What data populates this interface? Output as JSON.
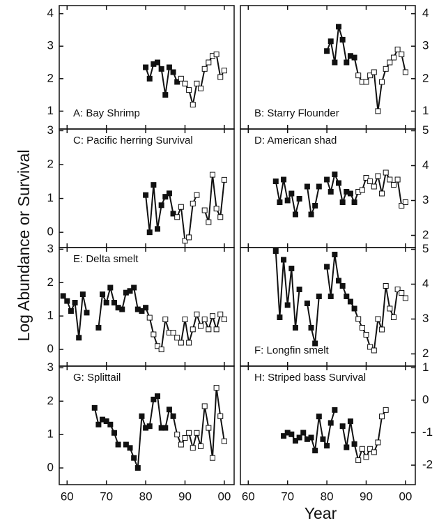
{
  "xlabel": "Year",
  "ylabel": "Log Abundance or Survival",
  "chart_data": [
    {
      "type": "line",
      "title": "A: Bay Shrimp",
      "title_position": "bottom",
      "yaxis_side": "left",
      "open_marker_from": 1989,
      "x": [
        1980,
        1981,
        1982,
        1983,
        1984,
        1985,
        1986,
        1987,
        1988,
        1989,
        1990,
        1991,
        1992,
        1993,
        1994,
        1995,
        1996,
        1997,
        1998,
        1999,
        2000
      ],
      "values": [
        2.35,
        2.0,
        2.45,
        2.5,
        2.3,
        1.5,
        2.35,
        2.2,
        1.9,
        2.0,
        1.85,
        1.65,
        1.2,
        1.85,
        1.7,
        2.3,
        2.5,
        2.7,
        2.75,
        2.05,
        2.25
      ],
      "xlim": [
        1958,
        2002.5
      ],
      "ylim": [
        0.45,
        4.25
      ],
      "yticks": [
        1,
        2,
        3,
        4
      ]
    },
    {
      "type": "line",
      "title": "B: Starry Flounder",
      "title_position": "bottom",
      "yaxis_side": "right",
      "open_marker_from": 1988,
      "x": [
        1980,
        1981,
        1982,
        1983,
        1984,
        1985,
        1986,
        1987,
        1988,
        1989,
        1990,
        1991,
        1992,
        1993,
        1994,
        1995,
        1996,
        1997,
        1998,
        1999,
        2000
      ],
      "values": [
        2.85,
        3.15,
        2.5,
        3.6,
        3.2,
        2.5,
        2.7,
        2.65,
        2.1,
        1.9,
        1.9,
        2.1,
        2.2,
        1.0,
        1.9,
        2.3,
        2.5,
        2.65,
        2.9,
        2.75,
        2.2
      ],
      "xlim": [
        1958,
        2002.5
      ],
      "ylim": [
        0.45,
        4.25
      ],
      "yticks": [
        1,
        2,
        3,
        4
      ]
    },
    {
      "type": "line",
      "title": "C: Pacific herring Survival",
      "title_position": "top",
      "yaxis_side": "left",
      "open_marker_from": 1988,
      "x": [
        1980,
        1981,
        1982,
        1983,
        1984,
        1985,
        1986,
        1987,
        1988,
        1989,
        1990,
        1991,
        1992,
        1993,
        1994,
        1995,
        1996,
        1997,
        1998,
        1999,
        2000
      ],
      "values": [
        1.1,
        0.0,
        1.4,
        0.1,
        0.8,
        1.05,
        1.15,
        0.55,
        0.45,
        0.75,
        -0.25,
        -0.15,
        0.85,
        1.1,
        null,
        0.65,
        0.3,
        1.7,
        0.7,
        0.45,
        1.55
      ],
      "xlim": [
        1958,
        2002.5
      ],
      "ylim": [
        -0.45,
        3.05
      ],
      "yticks": [
        0,
        1,
        2,
        3
      ]
    },
    {
      "type": "line",
      "title": "D: American shad",
      "title_position": "top",
      "yaxis_side": "right",
      "open_marker_from": 1988,
      "x": [
        1967,
        1968,
        1969,
        1970,
        1971,
        1972,
        1973,
        1974,
        1975,
        1976,
        1977,
        1978,
        1979,
        1980,
        1981,
        1982,
        1983,
        1984,
        1985,
        1986,
        1987,
        1988,
        1989,
        1990,
        1991,
        1992,
        1993,
        1994,
        1995,
        1996,
        1997,
        1998,
        1999,
        2000
      ],
      "values": [
        3.55,
        2.95,
        3.6,
        3.0,
        3.2,
        2.6,
        3.05,
        null,
        3.4,
        2.6,
        2.85,
        3.4,
        null,
        3.6,
        3.25,
        3.75,
        3.5,
        2.95,
        3.25,
        3.2,
        2.95,
        3.25,
        3.3,
        3.65,
        3.55,
        3.4,
        3.7,
        3.2,
        3.8,
        3.6,
        3.45,
        3.6,
        2.85,
        2.95
      ],
      "xlim": [
        1958,
        2002.5
      ],
      "ylim": [
        1.65,
        5.05
      ],
      "yticks": [
        2,
        3,
        4,
        5
      ]
    },
    {
      "type": "line",
      "title": "E: Delta smelt",
      "title_position": "top",
      "yaxis_side": "left",
      "open_marker_from": 1981,
      "x": [
        1959,
        1960,
        1961,
        1962,
        1963,
        1964,
        1965,
        1966,
        1967,
        1968,
        1969,
        1970,
        1971,
        1972,
        1973,
        1974,
        1975,
        1976,
        1977,
        1978,
        1979,
        1980,
        1981,
        1982,
        1983,
        1984,
        1985,
        1986,
        1987,
        1988,
        1989,
        1990,
        1991,
        1992,
        1993,
        1994,
        1995,
        1996,
        1997,
        1998,
        1999,
        2000
      ],
      "values": [
        1.6,
        1.45,
        1.15,
        1.4,
        0.35,
        1.65,
        1.1,
        null,
        null,
        0.65,
        1.65,
        1.4,
        1.85,
        1.4,
        1.25,
        1.2,
        1.7,
        1.75,
        1.85,
        1.2,
        1.15,
        1.25,
        0.95,
        0.45,
        0.1,
        0.0,
        0.9,
        0.5,
        0.5,
        0.35,
        0.2,
        0.9,
        0.2,
        0.6,
        1.05,
        0.7,
        0.9,
        0.6,
        1.0,
        0.6,
        1.05,
        0.9
      ],
      "xlim": [
        1958,
        2002.5
      ],
      "ylim": [
        -0.5,
        3.05
      ],
      "yticks": [
        0,
        1,
        2,
        3
      ]
    },
    {
      "type": "line",
      "title": "F: Longfin smelt",
      "title_position": "bottom",
      "yaxis_side": "right",
      "open_marker_from": 1988,
      "x": [
        1967,
        1968,
        1969,
        1970,
        1971,
        1972,
        1973,
        1974,
        1975,
        1976,
        1977,
        1978,
        1979,
        1980,
        1981,
        1982,
        1983,
        1984,
        1985,
        1986,
        1987,
        1988,
        1989,
        1990,
        1991,
        1992,
        1993,
        1994,
        1995,
        1996,
        1997,
        1998,
        1999,
        2000
      ],
      "values": [
        4.95,
        3.05,
        4.7,
        3.4,
        4.45,
        2.75,
        3.85,
        null,
        3.45,
        2.75,
        2.3,
        3.65,
        null,
        4.5,
        3.65,
        4.85,
        4.1,
        3.95,
        3.65,
        3.5,
        3.3,
        3.0,
        2.75,
        2.55,
        2.2,
        2.1,
        3.0,
        2.7,
        3.95,
        3.3,
        3.05,
        3.85,
        3.75,
        3.6
      ],
      "xlim": [
        1958,
        2002.5
      ],
      "ylim": [
        1.65,
        5.05
      ],
      "yticks": [
        2,
        3,
        4,
        5
      ]
    },
    {
      "type": "line",
      "title": "G: Splittail",
      "title_position": "top",
      "yaxis_side": "left",
      "open_marker_from": 1988,
      "x": [
        1967,
        1968,
        1969,
        1970,
        1971,
        1972,
        1973,
        1974,
        1975,
        1976,
        1977,
        1978,
        1979,
        1980,
        1981,
        1982,
        1983,
        1984,
        1985,
        1986,
        1987,
        1988,
        1989,
        1990,
        1991,
        1992,
        1993,
        1994,
        1995,
        1996,
        1997,
        1998,
        1999,
        2000
      ],
      "values": [
        1.8,
        1.3,
        1.45,
        1.4,
        1.3,
        1.05,
        0.7,
        null,
        0.7,
        0.6,
        0.3,
        0.0,
        1.55,
        1.2,
        1.25,
        2.05,
        2.15,
        1.2,
        1.2,
        1.75,
        1.55,
        1.0,
        0.7,
        0.9,
        1.05,
        0.6,
        1.05,
        0.65,
        1.85,
        1.2,
        0.3,
        2.4,
        1.55,
        0.8
      ],
      "xlim": [
        1958,
        2002.5
      ],
      "ylim": [
        -0.5,
        3.05
      ],
      "yticks": [
        0,
        1,
        2,
        3
      ],
      "xticks": [
        {
          "value": 1960,
          "label": "60"
        },
        {
          "value": 1970,
          "label": "70"
        },
        {
          "value": 1980,
          "label": "80"
        },
        {
          "value": 1990,
          "label": "90"
        },
        {
          "value": 2000,
          "label": "00"
        }
      ]
    },
    {
      "type": "line",
      "title": "H: Striped bass Survival",
      "title_position": "top",
      "yaxis_side": "right",
      "open_marker_from": 1988,
      "x": [
        1969,
        1970,
        1971,
        1972,
        1973,
        1974,
        1975,
        1976,
        1977,
        1978,
        1979,
        1980,
        1981,
        1982,
        1983,
        1984,
        1985,
        1986,
        1987,
        1988,
        1989,
        1990,
        1991,
        1992,
        1993,
        1994,
        1995
      ],
      "values": [
        -1.1,
        -1.0,
        -1.05,
        -1.25,
        -1.15,
        -1.0,
        -1.2,
        -1.15,
        -1.55,
        -0.5,
        -1.2,
        -1.4,
        -0.7,
        -0.3,
        null,
        -0.8,
        -1.45,
        -0.65,
        -1.35,
        -1.85,
        -1.5,
        -1.75,
        -1.5,
        -1.6,
        -1.3,
        -0.5,
        -0.3
      ],
      "xlim": [
        1958,
        2002.5
      ],
      "ylim": [
        -2.6,
        1.05
      ],
      "yticks": [
        -2,
        -1,
        0,
        1
      ],
      "xticks": [
        {
          "value": 1960,
          "label": "60"
        },
        {
          "value": 1970,
          "label": "70"
        },
        {
          "value": 1980,
          "label": "80"
        },
        {
          "value": 1990,
          "label": "90"
        },
        {
          "value": 2000,
          "label": "00"
        }
      ]
    }
  ]
}
